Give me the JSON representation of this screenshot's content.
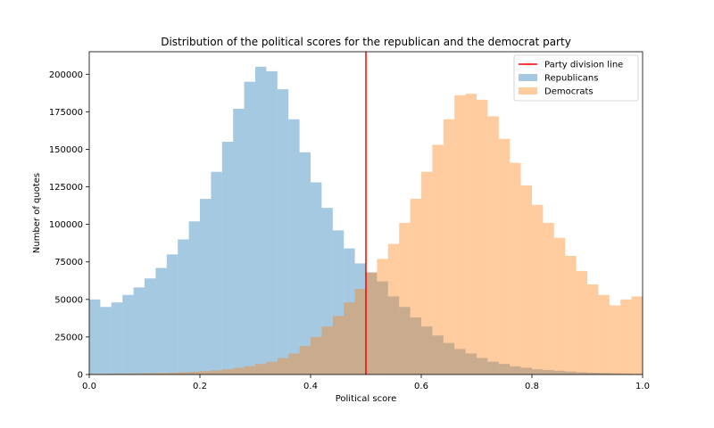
{
  "chart_data": {
    "type": "bar",
    "title": "Distribution of the political scores for the republican and the democrat party",
    "xlabel": "Political score",
    "ylabel": "Number of quotes",
    "xlim": [
      0,
      1
    ],
    "ylim": [
      0,
      215000
    ],
    "bin_width": 0.02,
    "x": [
      0.0,
      0.02,
      0.04,
      0.06,
      0.08,
      0.1,
      0.12,
      0.14,
      0.16,
      0.18,
      0.2,
      0.22,
      0.24,
      0.26,
      0.28,
      0.3,
      0.32,
      0.34,
      0.36,
      0.38,
      0.4,
      0.42,
      0.44,
      0.46,
      0.48,
      0.5,
      0.52,
      0.54,
      0.56,
      0.58,
      0.6,
      0.62,
      0.64,
      0.66,
      0.68,
      0.7,
      0.72,
      0.74,
      0.76,
      0.78,
      0.8,
      0.82,
      0.84,
      0.86,
      0.88,
      0.9,
      0.92,
      0.94,
      0.96,
      0.98
    ],
    "x_ticks": [
      0.0,
      0.2,
      0.4,
      0.6,
      0.8,
      1.0
    ],
    "x_tick_labels": [
      "0.0",
      "0.2",
      "0.4",
      "0.6",
      "0.8",
      "1.0"
    ],
    "y_ticks": [
      0,
      25000,
      50000,
      75000,
      100000,
      125000,
      150000,
      175000,
      200000
    ],
    "y_tick_labels": [
      "0",
      "25000",
      "50000",
      "75000",
      "100000",
      "125000",
      "150000",
      "175000",
      "200000"
    ],
    "grid": false,
    "legend_position": "top-right",
    "series": [
      {
        "name": "Republicans",
        "color": "#1f77b4",
        "opacity": 0.4,
        "values": [
          50000,
          45000,
          48000,
          53000,
          58000,
          64000,
          71000,
          80000,
          90000,
          102000,
          117000,
          135000,
          155000,
          177000,
          195000,
          205000,
          202000,
          190000,
          170000,
          148000,
          128000,
          111000,
          96000,
          84000,
          74000,
          68000,
          62000,
          52000,
          45000,
          38000,
          32000,
          26000,
          21000,
          17000,
          14000,
          11000,
          8500,
          7000,
          5500,
          4500,
          3500,
          3000,
          2500,
          2000,
          1500,
          1200,
          1000,
          800,
          600,
          400
        ]
      },
      {
        "name": "Democrats",
        "color": "#ff7f0e",
        "opacity": 0.4,
        "values": [
          500,
          500,
          600,
          700,
          800,
          900,
          1000,
          1200,
          1500,
          1800,
          2200,
          2800,
          3500,
          4500,
          5500,
          7000,
          8500,
          11000,
          14000,
          19000,
          25000,
          32000,
          39000,
          48000,
          57000,
          68000,
          77000,
          87000,
          101000,
          117000,
          135000,
          153000,
          170000,
          186000,
          187000,
          183000,
          172000,
          157000,
          141000,
          126000,
          113000,
          101000,
          91000,
          79000,
          69000,
          60000,
          53000,
          46000,
          50000,
          52000
        ]
      }
    ],
    "reference_line": {
      "name": "Party division line",
      "x": 0.5,
      "color": "#ff0000"
    }
  }
}
